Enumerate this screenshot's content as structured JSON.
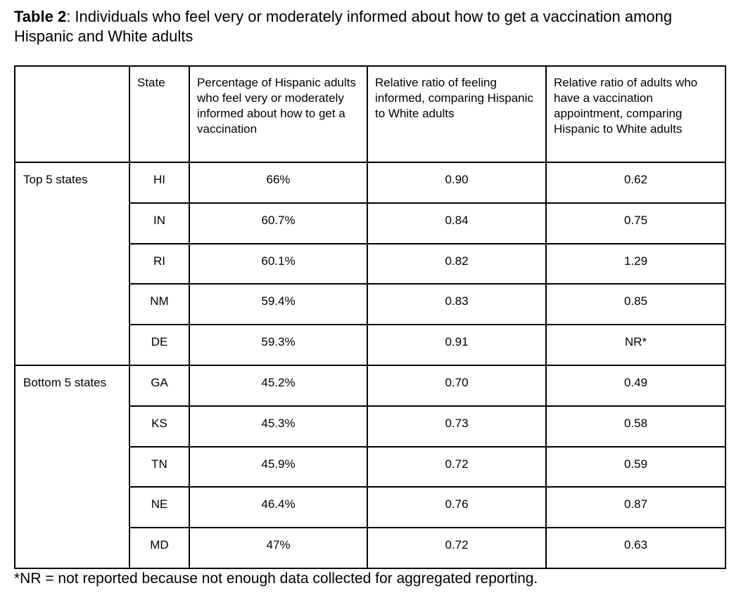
{
  "title": {
    "label": "Table 2",
    "text": ": Individuals who feel very or moderately informed about how to get a vaccination among Hispanic and White adults"
  },
  "table": {
    "headers": [
      "",
      "State",
      "Percentage of Hispanic adults who feel very or moderately informed about how to get a vaccination",
      "Relative ratio of feeling informed, comparing Hispanic to White adults",
      "Relative ratio of adults who have a vaccination appointment, comparing Hispanic to White adults"
    ],
    "groups": [
      {
        "label": "Top 5 states",
        "rows": [
          [
            "HI",
            "66%",
            "0.90",
            "0.62"
          ],
          [
            "IN",
            "60.7%",
            "0.84",
            "0.75"
          ],
          [
            "RI",
            "60.1%",
            "0.82",
            "1.29"
          ],
          [
            "NM",
            "59.4%",
            "0.83",
            "0.85"
          ],
          [
            "DE",
            "59.3%",
            "0.91",
            "NR*"
          ]
        ]
      },
      {
        "label": "Bottom 5 states",
        "rows": [
          [
            "GA",
            "45.2%",
            "0.70",
            "0.49"
          ],
          [
            "KS",
            "45.3%",
            "0.73",
            "0.58"
          ],
          [
            "TN",
            "45.9%",
            "0.72",
            "0.59"
          ],
          [
            "NE",
            "46.4%",
            "0.76",
            "0.87"
          ],
          [
            "MD",
            "47%",
            "0.72",
            "0.63"
          ]
        ]
      }
    ]
  },
  "footnote": "*NR = not reported because not enough data collected for aggregated reporting."
}
